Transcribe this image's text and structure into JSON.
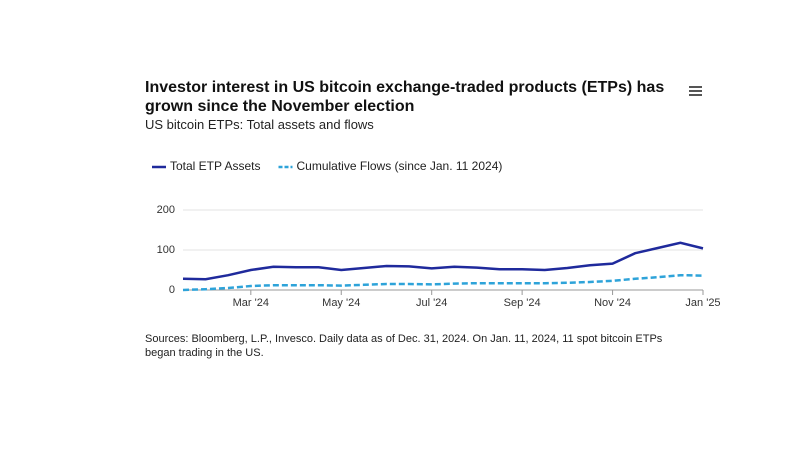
{
  "chart_data": {
    "type": "line",
    "title": "Investor interest in US bitcoin exchange-traded products (ETPs) has grown since the November election",
    "subtitle": "US bitcoin ETPs: Total assets and flows",
    "source": "Sources: Bloomberg, L.P., Invesco. Daily data as of Dec. 31, 2024. On Jan. 11, 2024, 11 spot bitcoin ETPs began trading in the US.",
    "categories": [
      null,
      null,
      null,
      "Mar '24",
      null,
      null,
      null,
      "May '24",
      null,
      null,
      null,
      "Jul '24",
      null,
      null,
      null,
      "Sep '24",
      null,
      null,
      null,
      "Nov '24",
      null,
      null,
      null,
      "Jan '25"
    ],
    "series": [
      {
        "name": "Total ETP Assets",
        "color": "#1f2a9c",
        "dashed": false,
        "values": [
          28,
          27,
          37,
          50,
          58,
          57,
          57,
          50,
          55,
          60,
          59,
          54,
          58,
          56,
          52,
          52,
          50,
          55,
          62,
          66,
          92,
          105,
          118,
          104
        ]
      },
      {
        "name": "Cumulative Flows (since Jan. 11 2024)",
        "color": "#2ea3d9",
        "dashed": true,
        "values": [
          0,
          2,
          5,
          10,
          12,
          12,
          12,
          11,
          13,
          15,
          15,
          14,
          16,
          17,
          17,
          17,
          17,
          18,
          20,
          23,
          28,
          32,
          37,
          36
        ]
      }
    ],
    "ylim": [
      0,
      200
    ],
    "yticks": [
      0,
      100,
      200
    ],
    "grid": true
  }
}
